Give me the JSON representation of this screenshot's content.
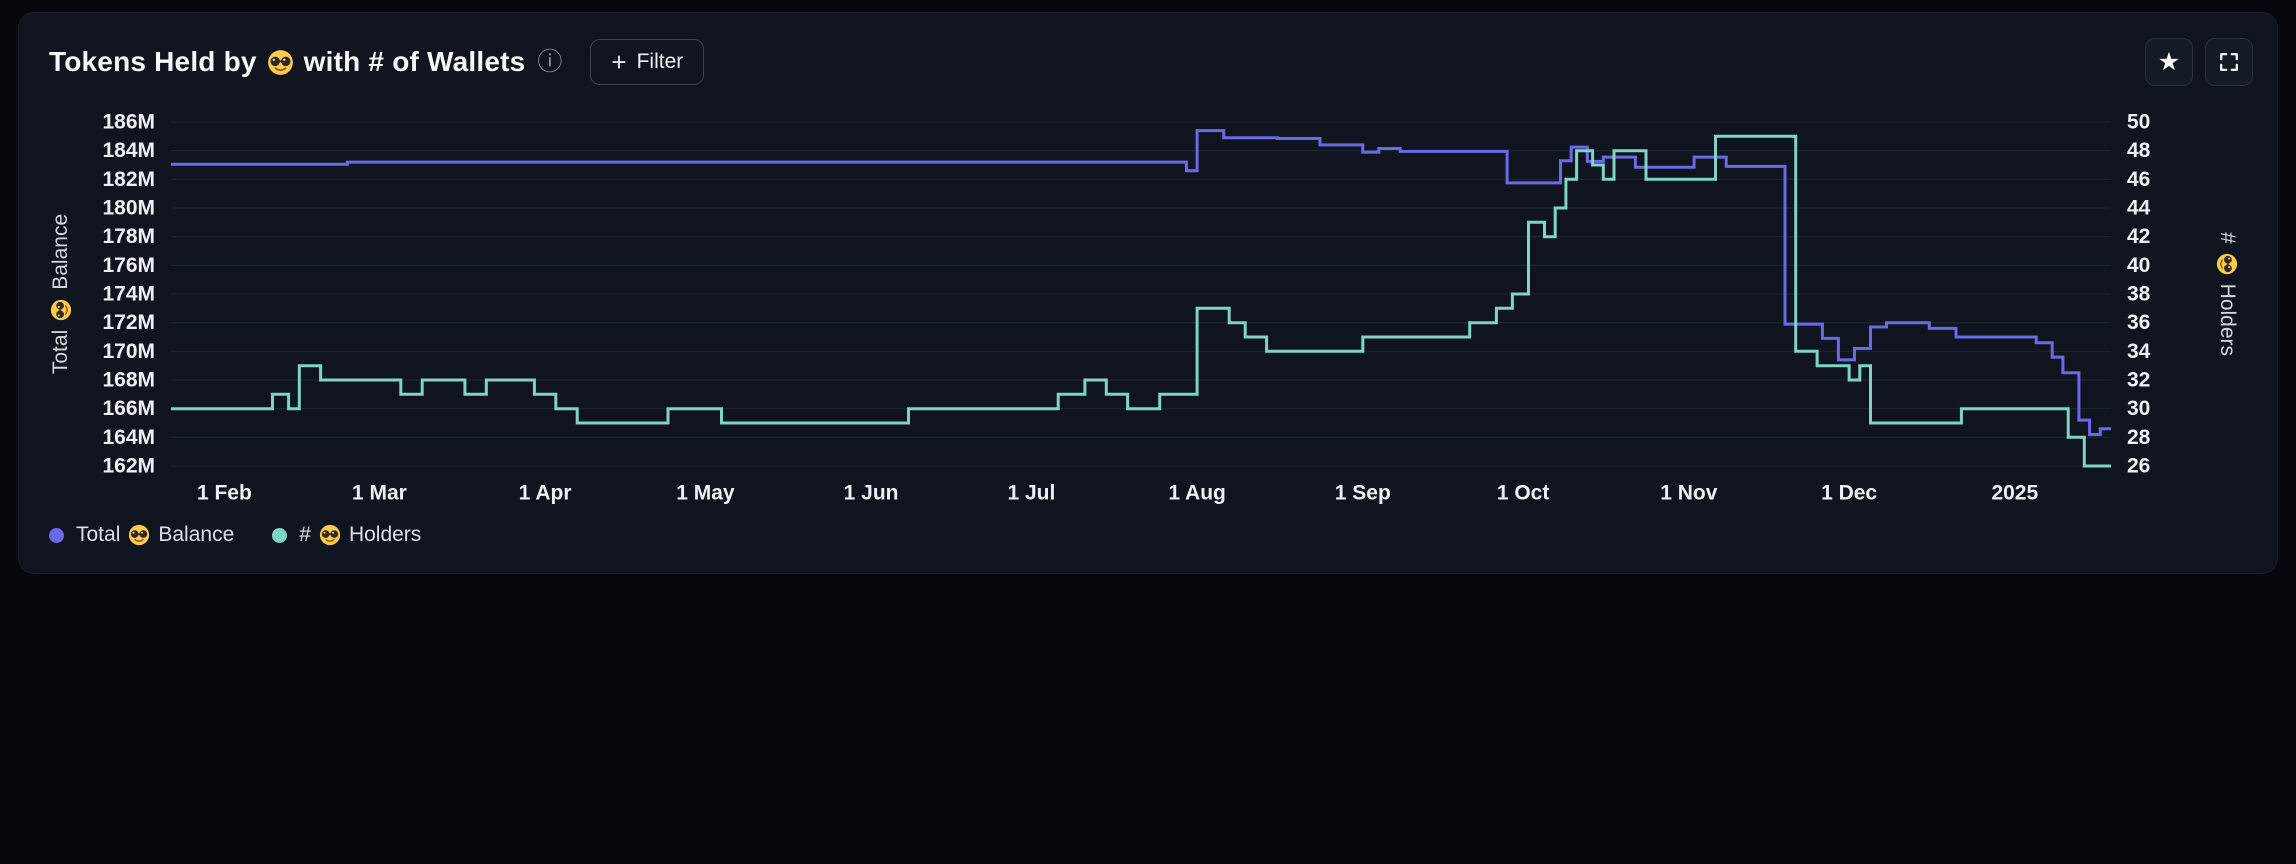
{
  "header": {
    "title_prefix": "Tokens Held by",
    "title_suffix": "with # of Wallets",
    "title_full": "Tokens Held by 🤓 with # of Wallets",
    "info_glyph": "ⓘ",
    "filter_plus": "+",
    "filter_label": "Filter",
    "star_glyph": "★"
  },
  "legend": {
    "items": [
      {
        "prefix": "Total",
        "suffix": "Balance",
        "name": "Total 🤓 Balance",
        "series": "total-balance",
        "color": "#6C69E8"
      },
      {
        "prefix": "#",
        "suffix": "Holders",
        "name": "# 🤓 Holders",
        "series": "holders",
        "color": "#7FD5C3"
      }
    ]
  },
  "chart_data": {
    "type": "line",
    "step": true,
    "title": "Tokens Held by 🤓 with # of Wallets",
    "grid": "horizontal",
    "legend_position": "bottom-left",
    "x_domain": [
      "2024-01-22",
      "2025-01-19"
    ],
    "x_ticks": [
      {
        "date": "2024-02-01",
        "label": "1 Feb"
      },
      {
        "date": "2024-03-01",
        "label": "1 Mar"
      },
      {
        "date": "2024-04-01",
        "label": "1 Apr"
      },
      {
        "date": "2024-05-01",
        "label": "1 May"
      },
      {
        "date": "2024-06-01",
        "label": "1 Jun"
      },
      {
        "date": "2024-07-01",
        "label": "1 Jul"
      },
      {
        "date": "2024-08-01",
        "label": "1 Aug"
      },
      {
        "date": "2024-09-01",
        "label": "1 Sep"
      },
      {
        "date": "2024-10-01",
        "label": "1 Oct"
      },
      {
        "date": "2024-11-01",
        "label": "1 Nov"
      },
      {
        "date": "2024-12-01",
        "label": "1 Dec"
      },
      {
        "date": "2025-01-01",
        "label": "2025"
      }
    ],
    "left_axis": {
      "title_prefix": "Total",
      "title_suffix": "Balance",
      "title_full": "Total 🤓 Balance",
      "unit": "millions of tokens",
      "min": 162,
      "max": 186,
      "tick_step": 2,
      "tick_labels": [
        "162M",
        "164M",
        "166M",
        "168M",
        "170M",
        "172M",
        "174M",
        "176M",
        "178M",
        "180M",
        "182M",
        "184M",
        "186M"
      ]
    },
    "right_axis": {
      "title_prefix": "#",
      "title_suffix": "Holders",
      "title_full": "# 🤓 Holders",
      "min": 26,
      "max": 50,
      "tick_step": 2,
      "tick_labels": [
        "26",
        "28",
        "30",
        "32",
        "34",
        "36",
        "38",
        "40",
        "42",
        "44",
        "46",
        "48",
        "50"
      ]
    },
    "series": [
      {
        "id": "total-balance",
        "name": "Total 🤓 Balance",
        "axis": "left",
        "color": "#6C69E8",
        "unit": "M",
        "points": [
          [
            "2024-01-22",
            183.05
          ],
          [
            "2024-02-24",
            183.2
          ],
          [
            "2024-07-30",
            182.6
          ],
          [
            "2024-08-01",
            185.4
          ],
          [
            "2024-08-06",
            184.9
          ],
          [
            "2024-08-16",
            184.85
          ],
          [
            "2024-08-24",
            184.4
          ],
          [
            "2024-09-01",
            183.9
          ],
          [
            "2024-09-04",
            184.15
          ],
          [
            "2024-09-08",
            183.95
          ],
          [
            "2024-09-28",
            181.75
          ],
          [
            "2024-10-08",
            183.3
          ],
          [
            "2024-10-10",
            184.25
          ],
          [
            "2024-10-13",
            183.25
          ],
          [
            "2024-10-16",
            183.55
          ],
          [
            "2024-10-22",
            182.85
          ],
          [
            "2024-11-02",
            183.55
          ],
          [
            "2024-11-08",
            182.9
          ],
          [
            "2024-11-19",
            171.9
          ],
          [
            "2024-11-26",
            170.9
          ],
          [
            "2024-11-29",
            169.4
          ],
          [
            "2024-12-02",
            170.2
          ],
          [
            "2024-12-05",
            171.7
          ],
          [
            "2024-12-08",
            172.0
          ],
          [
            "2024-12-16",
            171.6
          ],
          [
            "2024-12-21",
            171.0
          ],
          [
            "2025-01-05",
            170.6
          ],
          [
            "2025-01-08",
            169.6
          ],
          [
            "2025-01-10",
            168.5
          ],
          [
            "2025-01-13",
            165.2
          ],
          [
            "2025-01-15",
            164.2
          ],
          [
            "2025-01-17",
            164.6
          ]
        ]
      },
      {
        "id": "holders",
        "name": "# 🤓 Holders",
        "axis": "right",
        "color": "#7FD5C3",
        "unit": "wallets",
        "points": [
          [
            "2024-01-22",
            30
          ],
          [
            "2024-02-10",
            31
          ],
          [
            "2024-02-13",
            30
          ],
          [
            "2024-02-15",
            33
          ],
          [
            "2024-02-19",
            32
          ],
          [
            "2024-03-05",
            31
          ],
          [
            "2024-03-09",
            32
          ],
          [
            "2024-03-17",
            31
          ],
          [
            "2024-03-21",
            32
          ],
          [
            "2024-03-30",
            31
          ],
          [
            "2024-04-03",
            30
          ],
          [
            "2024-04-07",
            29
          ],
          [
            "2024-04-24",
            30
          ],
          [
            "2024-05-04",
            29
          ],
          [
            "2024-06-08",
            30
          ],
          [
            "2024-07-06",
            31
          ],
          [
            "2024-07-11",
            32
          ],
          [
            "2024-07-15",
            31
          ],
          [
            "2024-07-19",
            30
          ],
          [
            "2024-07-25",
            31
          ],
          [
            "2024-08-01",
            37
          ],
          [
            "2024-08-07",
            36
          ],
          [
            "2024-08-10",
            35
          ],
          [
            "2024-08-14",
            34
          ],
          [
            "2024-09-01",
            35
          ],
          [
            "2024-09-21",
            36
          ],
          [
            "2024-09-26",
            37
          ],
          [
            "2024-09-29",
            38
          ],
          [
            "2024-10-02",
            43
          ],
          [
            "2024-10-05",
            42
          ],
          [
            "2024-10-07",
            44
          ],
          [
            "2024-10-09",
            46
          ],
          [
            "2024-10-11",
            48
          ],
          [
            "2024-10-14",
            47
          ],
          [
            "2024-10-16",
            46
          ],
          [
            "2024-10-18",
            48
          ],
          [
            "2024-10-24",
            46
          ],
          [
            "2024-11-06",
            49
          ],
          [
            "2024-11-21",
            34
          ],
          [
            "2024-11-25",
            33
          ],
          [
            "2024-12-01",
            32
          ],
          [
            "2024-12-03",
            33
          ],
          [
            "2024-12-05",
            29
          ],
          [
            "2024-12-22",
            30
          ],
          [
            "2025-01-11",
            28
          ],
          [
            "2025-01-14",
            26
          ]
        ]
      }
    ]
  }
}
